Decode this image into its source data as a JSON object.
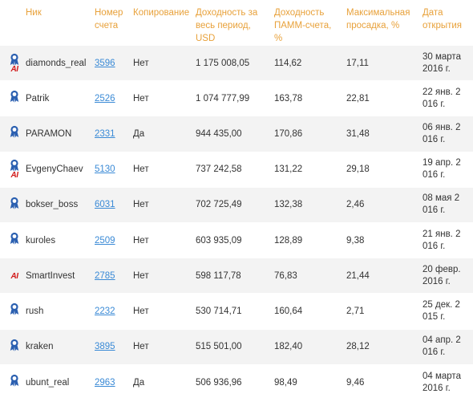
{
  "headers": {
    "nick": "Ник",
    "account": "Номер счета",
    "copy": "Копирование",
    "total": "Доходность за весь период, USD",
    "pamm": "Доходность ПАММ-счета, %",
    "drawdown": "Максимальная просадка, %",
    "opened": "Дата открытия"
  },
  "rows": [
    {
      "badge": true,
      "ai": true,
      "nick": "diamonds_real",
      "account": "3596",
      "copy": "Нет",
      "total": "1 175 008,05",
      "pamm": "114,62",
      "drawdown": "17,11",
      "opened": "30 марта 2016 г."
    },
    {
      "badge": true,
      "ai": false,
      "nick": "Patrik",
      "account": "2526",
      "copy": "Нет",
      "total": "1 074 777,99",
      "pamm": "163,78",
      "drawdown": "22,81",
      "opened": "22 янв. 2 016 г."
    },
    {
      "badge": true,
      "ai": false,
      "nick": "PARAMON",
      "account": "2331",
      "copy": "Да",
      "total": "944 435,00",
      "pamm": "170,86",
      "drawdown": "31,48",
      "opened": "06 янв. 2 016 г."
    },
    {
      "badge": true,
      "ai": true,
      "nick": "EvgenyChaev",
      "account": "5130",
      "copy": "Нет",
      "total": "737 242,58",
      "pamm": "131,22",
      "drawdown": "29,18",
      "opened": "19 апр. 2 016 г."
    },
    {
      "badge": true,
      "ai": false,
      "nick": "bokser_boss",
      "account": "6031",
      "copy": "Нет",
      "total": "702 725,49",
      "pamm": "132,38",
      "drawdown": "2,46",
      "opened": "08 мая 2 016 г."
    },
    {
      "badge": true,
      "ai": false,
      "nick": "kuroles",
      "account": "2509",
      "copy": "Нет",
      "total": "603 935,09",
      "pamm": "128,89",
      "drawdown": "9,38",
      "opened": "21 янв. 2 016 г."
    },
    {
      "badge": false,
      "ai": true,
      "nick": "SmartInvest",
      "account": "2785",
      "copy": "Нет",
      "total": "598 117,78",
      "pamm": "76,83",
      "drawdown": "21,44",
      "opened": "20 февр. 2016 г."
    },
    {
      "badge": true,
      "ai": false,
      "nick": "rush",
      "account": "2232",
      "copy": "Нет",
      "total": "530 714,71",
      "pamm": "160,64",
      "drawdown": "2,71",
      "opened": "25 дек. 2 015 г."
    },
    {
      "badge": true,
      "ai": false,
      "nick": "kraken",
      "account": "3895",
      "copy": "Нет",
      "total": "515 501,00",
      "pamm": "182,40",
      "drawdown": "28,12",
      "opened": "04 апр. 2 016 г."
    },
    {
      "badge": true,
      "ai": false,
      "nick": "ubunt_real",
      "account": "2963",
      "copy": "Да",
      "total": "506 936,96",
      "pamm": "98,49",
      "drawdown": "9,46",
      "opened": "04 марта 2016 г."
    }
  ],
  "icons": {
    "badge": "blue-ribbon-award-icon",
    "ai": "ai-label-icon"
  },
  "colors": {
    "header": "#e8a13a",
    "link": "#3a8ad6",
    "badge": "#2a5fb0",
    "ai": "#d11a1a",
    "stripe": "#f3f3f3"
  }
}
